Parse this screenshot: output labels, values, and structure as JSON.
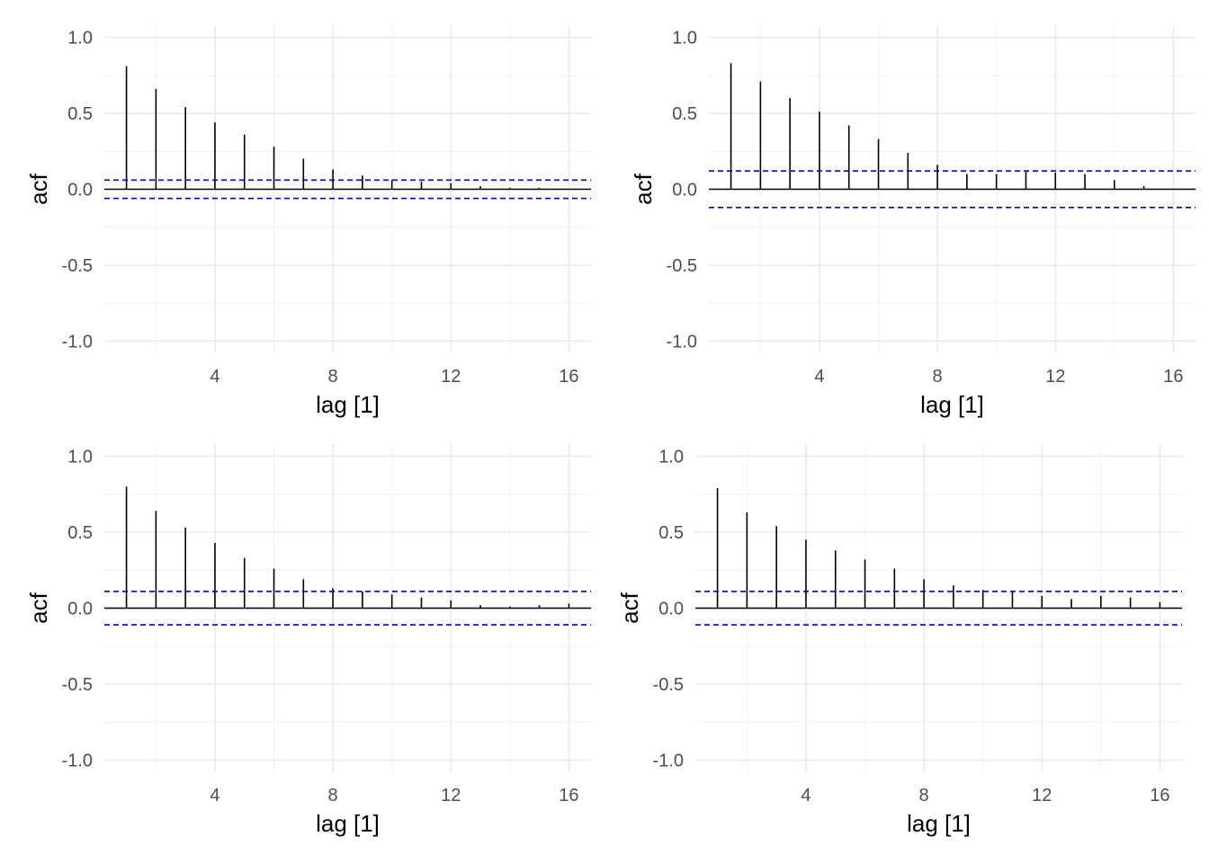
{
  "chart_data": [
    {
      "type": "bar",
      "xlabel": "lag [1]",
      "ylabel": "acf",
      "xlim": [
        0.25,
        16.75
      ],
      "ylim": [
        -1.08,
        1.08
      ],
      "x_ticks": [
        4,
        8,
        12,
        16
      ],
      "y_ticks": [
        -1.0,
        -0.5,
        0.0,
        0.5,
        1.0
      ],
      "y_tick_labels": [
        "-1.0",
        "-0.5",
        "0.0",
        "0.5",
        "1.0"
      ],
      "grid": true,
      "lags": [
        1,
        2,
        3,
        4,
        5,
        6,
        7,
        8,
        9,
        10,
        11,
        12,
        13,
        14,
        15,
        16
      ],
      "values": [
        0.81,
        0.66,
        0.54,
        0.44,
        0.36,
        0.28,
        0.2,
        0.13,
        0.09,
        0.06,
        0.05,
        0.04,
        0.02,
        0.01,
        0.01,
        0.0
      ],
      "confidence_bound": 0.06,
      "bound_color": "#0000cc"
    },
    {
      "type": "bar",
      "xlabel": "lag [1]",
      "ylabel": "acf",
      "xlim": [
        0.25,
        16.75
      ],
      "ylim": [
        -1.08,
        1.08
      ],
      "x_ticks": [
        4,
        8,
        12,
        16
      ],
      "y_ticks": [
        -1.0,
        -0.5,
        0.0,
        0.5,
        1.0
      ],
      "y_tick_labels": [
        "-1.0",
        "-0.5",
        "0.0",
        "0.5",
        "1.0"
      ],
      "grid": true,
      "lags": [
        1,
        2,
        3,
        4,
        5,
        6,
        7,
        8,
        9,
        10,
        11,
        12,
        13,
        14,
        15,
        16
      ],
      "values": [
        0.83,
        0.71,
        0.6,
        0.51,
        0.42,
        0.33,
        0.24,
        0.16,
        0.1,
        0.1,
        0.12,
        0.11,
        0.1,
        0.06,
        0.02,
        0.0
      ],
      "confidence_bound": 0.12,
      "bound_color": "#0000cc"
    },
    {
      "type": "bar",
      "xlabel": "lag [1]",
      "ylabel": "acf",
      "xlim": [
        0.25,
        16.75
      ],
      "ylim": [
        -1.08,
        1.08
      ],
      "x_ticks": [
        4,
        8,
        12,
        16
      ],
      "y_ticks": [
        -1.0,
        -0.5,
        0.0,
        0.5,
        1.0
      ],
      "y_tick_labels": [
        "-1.0",
        "-0.5",
        "0.0",
        "0.5",
        "1.0"
      ],
      "grid": true,
      "lags": [
        1,
        2,
        3,
        4,
        5,
        6,
        7,
        8,
        9,
        10,
        11,
        12,
        13,
        14,
        15,
        16
      ],
      "values": [
        0.8,
        0.64,
        0.53,
        0.43,
        0.33,
        0.26,
        0.19,
        0.13,
        0.11,
        0.09,
        0.07,
        0.05,
        0.02,
        0.01,
        0.02,
        0.03
      ],
      "confidence_bound": 0.11,
      "bound_color": "#0000cc"
    },
    {
      "type": "bar",
      "xlabel": "lag [1]",
      "ylabel": "acf",
      "xlim": [
        0.25,
        16.75
      ],
      "ylim": [
        -1.08,
        1.08
      ],
      "x_ticks": [
        4,
        8,
        12,
        16
      ],
      "y_ticks": [
        -1.0,
        -0.5,
        0.0,
        0.5,
        1.0
      ],
      "y_tick_labels": [
        "-1.0",
        "-0.5",
        "0.0",
        "0.5",
        "1.0"
      ],
      "grid": true,
      "lags": [
        1,
        2,
        3,
        4,
        5,
        6,
        7,
        8,
        9,
        10,
        11,
        12,
        13,
        14,
        15,
        16
      ],
      "values": [
        0.79,
        0.63,
        0.54,
        0.45,
        0.38,
        0.32,
        0.26,
        0.19,
        0.15,
        0.12,
        0.11,
        0.08,
        0.06,
        0.08,
        0.07,
        0.04
      ],
      "confidence_bound": 0.11,
      "bound_color": "#0000cc"
    }
  ]
}
